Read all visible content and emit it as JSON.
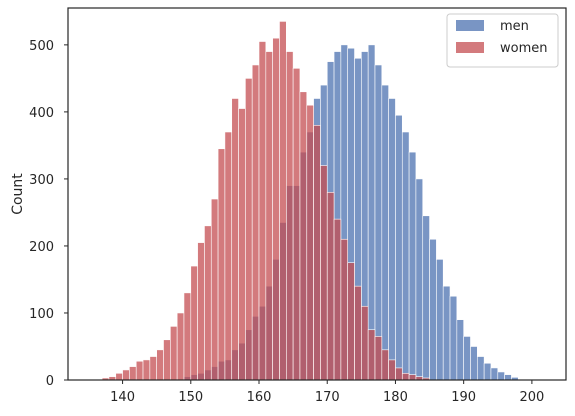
{
  "chart_data": {
    "type": "histogram",
    "title": "",
    "xlabel": "",
    "ylabel": "Count",
    "xlim": [
      132,
      205
    ],
    "ylim": [
      0,
      555
    ],
    "xticks": [
      140,
      150,
      160,
      170,
      180,
      190,
      200
    ],
    "yticks": [
      0,
      100,
      200,
      300,
      400,
      500
    ],
    "grid": false,
    "legend_position": "top-right",
    "bin_width": 1,
    "series": [
      {
        "name": "men",
        "color": "#4c72b0",
        "opacity": 0.75,
        "bin_start": 149,
        "values": [
          5,
          8,
          10,
          15,
          20,
          28,
          30,
          45,
          55,
          75,
          95,
          110,
          140,
          180,
          235,
          290,
          290,
          340,
          370,
          420,
          440,
          475,
          490,
          500,
          495,
          480,
          490,
          500,
          470,
          440,
          420,
          395,
          370,
          340,
          300,
          245,
          210,
          180,
          140,
          125,
          90,
          65,
          50,
          35,
          25,
          18,
          12,
          8,
          4
        ]
      },
      {
        "name": "women",
        "color": "#c44e52",
        "opacity": 0.75,
        "bin_start": 137,
        "values": [
          3,
          5,
          10,
          15,
          20,
          28,
          30,
          35,
          45,
          60,
          80,
          100,
          130,
          170,
          205,
          230,
          270,
          345,
          370,
          420,
          405,
          450,
          470,
          505,
          490,
          510,
          535,
          490,
          465,
          430,
          410,
          380,
          320,
          280,
          240,
          210,
          175,
          140,
          110,
          75,
          65,
          45,
          30,
          18,
          10,
          8,
          5,
          3
        ]
      }
    ]
  }
}
